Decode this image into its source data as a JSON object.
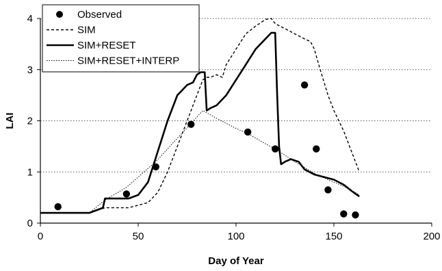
{
  "chart_data": {
    "type": "line",
    "xlabel": "Day of Year",
    "ylabel": "LAI",
    "xlim": [
      0,
      200
    ],
    "ylim": [
      0,
      4
    ],
    "x_ticks": [
      "0",
      "50",
      "100",
      "150",
      "200"
    ],
    "y_ticks": [
      "0",
      "1",
      "2",
      "3",
      "4"
    ],
    "grid": "horizontal dotted",
    "legend_position": "top-left",
    "series": [
      {
        "name": "Observed",
        "style": "markers",
        "color": "#000000",
        "x": [
          9,
          44,
          59,
          77,
          106,
          120,
          135,
          141,
          147,
          155,
          161
        ],
        "y": [
          0.32,
          0.57,
          1.1,
          1.93,
          1.78,
          1.45,
          2.7,
          1.45,
          0.65,
          0.18,
          0.16
        ]
      },
      {
        "name": "SIM",
        "style": "dashed",
        "color": "#000000",
        "x": [
          0,
          25,
          33,
          45,
          55,
          60,
          65,
          70,
          75,
          80,
          83,
          85,
          87,
          90,
          93,
          95,
          100,
          105,
          110,
          115,
          118,
          120,
          125,
          130,
          135,
          138,
          140,
          143,
          147,
          150,
          155,
          160,
          163
        ],
        "y": [
          0.2,
          0.2,
          0.3,
          0.3,
          0.4,
          0.6,
          1.0,
          1.5,
          2.0,
          2.5,
          2.8,
          2.85,
          2.85,
          2.9,
          2.85,
          3.1,
          3.4,
          3.7,
          3.85,
          3.98,
          4.0,
          3.9,
          3.8,
          3.7,
          3.6,
          3.55,
          3.4,
          3.0,
          2.5,
          2.2,
          1.8,
          1.3,
          1.0
        ]
      },
      {
        "name": "SIM+RESET",
        "style": "solid-thick",
        "color": "#000000",
        "x": [
          0,
          25,
          32,
          33,
          45,
          50,
          55,
          60,
          65,
          70,
          75,
          78,
          80,
          82,
          84,
          85,
          87,
          90,
          95,
          100,
          105,
          110,
          115,
          118,
          120,
          121,
          122,
          123,
          125,
          128,
          132,
          135,
          140,
          145,
          150,
          155,
          160,
          163
        ],
        "y": [
          0.2,
          0.2,
          0.3,
          0.48,
          0.48,
          0.55,
          0.8,
          1.4,
          2.0,
          2.5,
          2.7,
          2.75,
          2.9,
          2.95,
          2.95,
          2.2,
          2.25,
          2.3,
          2.5,
          2.8,
          3.1,
          3.4,
          3.6,
          3.72,
          3.72,
          2.5,
          1.5,
          1.15,
          1.2,
          1.25,
          1.2,
          1.05,
          0.95,
          0.9,
          0.85,
          0.75,
          0.6,
          0.52
        ]
      },
      {
        "name": "SIM+RESET+INTERP",
        "style": "dotted",
        "color": "#000000",
        "x": [
          0,
          25,
          33,
          44,
          59,
          77,
          83,
          90,
          100,
          106,
          115,
          120,
          130,
          141,
          150,
          155,
          160,
          163
        ],
        "y": [
          0.2,
          0.2,
          0.45,
          0.7,
          1.2,
          1.95,
          2.2,
          2.05,
          1.85,
          1.75,
          1.55,
          1.45,
          1.2,
          0.95,
          0.8,
          0.72,
          0.62,
          0.55
        ]
      }
    ]
  }
}
